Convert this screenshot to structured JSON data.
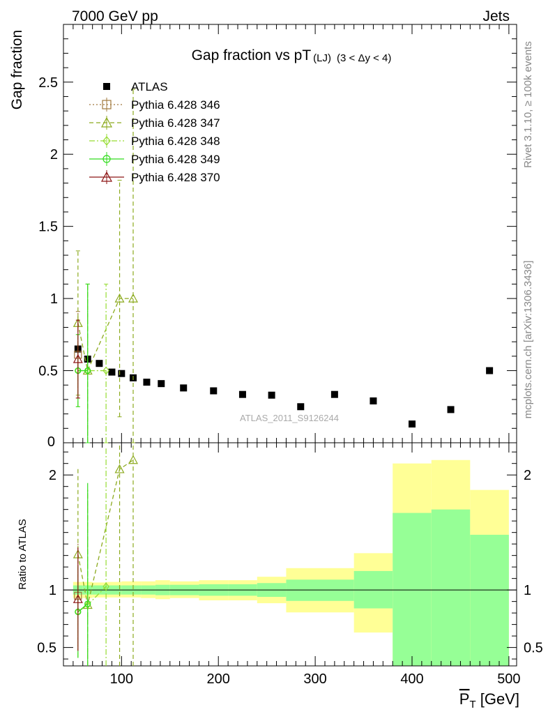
{
  "header": {
    "left": "7000 GeV pp",
    "right": "Jets"
  },
  "title": {
    "main": "Gap fraction vs pT",
    "sub1": "(LJ)",
    "sub2": "(3 < Δy < 4)"
  },
  "side": {
    "rivet": "Rivet 3.1.10, ≥ 100k events",
    "mcplots": "mcplots.cern.ch [arXiv:1306.3436]"
  },
  "watermark": "ATLAS_2011_S9126244",
  "colors": {
    "data": "#000000",
    "p346": "#a0783c",
    "p347": "#8caa1e",
    "p348": "#96dc32",
    "p349": "#32dc1e",
    "p370": "#8c1414",
    "band_total": "#ffff96",
    "band_stat": "#96ff96"
  },
  "chart_data": [
    {
      "type": "scatter",
      "ylabel": "Gap fraction",
      "xlim": [
        40,
        508
      ],
      "ylim": [
        0,
        2.9
      ],
      "yticks": [
        0.5,
        1,
        1.5,
        2,
        2.5
      ],
      "yticklabels": [
        "0.5",
        "1",
        "1.5",
        "2",
        "2.5"
      ],
      "ylabel_zero": "0",
      "legend_position": "top-left",
      "series": [
        {
          "name": "ATLAS",
          "marker": "filled-square",
          "x": [
            55,
            65,
            77,
            90,
            100,
            112,
            126,
            141,
            164,
            195,
            225,
            255,
            285,
            320,
            360,
            400,
            440,
            480
          ],
          "y": [
            0.65,
            0.58,
            0.55,
            0.49,
            0.48,
            0.45,
            0.42,
            0.41,
            0.38,
            0.36,
            0.335,
            0.33,
            0.25,
            0.335,
            0.29,
            0.13,
            0.23,
            0.5
          ]
        },
        {
          "name": "Pythia 6.428 346",
          "marker": "open-square",
          "line": "dotted",
          "x": [
            55
          ],
          "y": [
            0.61
          ],
          "yerr": [
            0.3
          ]
        },
        {
          "name": "Pythia 6.428 347",
          "marker": "open-triangle",
          "line": "dashed",
          "x": [
            55,
            65,
            98,
            112
          ],
          "y": [
            0.83,
            0.5,
            1.0,
            1.0
          ],
          "yerr": [
            0.5,
            0.6,
            0.82,
            1.45
          ]
        },
        {
          "name": "Pythia 6.428 348",
          "marker": "open-diamond",
          "line": "dashdot",
          "x": [
            55,
            65,
            84
          ],
          "y": [
            0.5,
            0.5,
            0.5
          ],
          "yerr": [
            0.25,
            0.6,
            0.6
          ]
        },
        {
          "name": "Pythia 6.428 349",
          "marker": "open-circle",
          "line": "solid",
          "x": [
            55,
            65
          ],
          "y": [
            0.5,
            0.5
          ],
          "yerr": [
            0.25,
            0.6
          ]
        },
        {
          "name": "Pythia 6.428 370",
          "marker": "open-triangle",
          "line": "solid",
          "x": [
            55
          ],
          "y": [
            0.58
          ],
          "yerr": [
            0.27
          ]
        }
      ]
    },
    {
      "type": "area",
      "ylabel": "Ratio to ATLAS",
      "xlabel": "P̄T [GeV]",
      "xlabel_main": "P",
      "xlabel_sub": "T",
      "xlabel_unit": " [GeV]",
      "xlim": [
        40,
        508
      ],
      "ylim": [
        0.34,
        2.28
      ],
      "xticks": [
        100,
        200,
        300,
        400,
        500
      ],
      "xticklabels": [
        "100",
        "200",
        "300",
        "400",
        "500"
      ],
      "yticks": [
        0.5,
        1,
        2
      ],
      "yticklabels": [
        "0.5",
        "1",
        "2"
      ],
      "bins": [
        {
          "lo": 50,
          "hi": 60,
          "stat": [
            0.96,
            1.04
          ],
          "total": [
            0.93,
            1.07
          ]
        },
        {
          "lo": 60,
          "hi": 70,
          "stat": [
            0.96,
            1.04
          ],
          "total": [
            0.93,
            1.07
          ]
        },
        {
          "lo": 70,
          "hi": 85,
          "stat": [
            0.96,
            1.04
          ],
          "total": [
            0.935,
            1.065
          ]
        },
        {
          "lo": 85,
          "hi": 100,
          "stat": [
            0.96,
            1.04
          ],
          "total": [
            0.935,
            1.07
          ]
        },
        {
          "lo": 100,
          "hi": 120,
          "stat": [
            0.96,
            1.04
          ],
          "total": [
            0.935,
            1.075
          ]
        },
        {
          "lo": 120,
          "hi": 135,
          "stat": [
            0.96,
            1.04
          ],
          "total": [
            0.93,
            1.075
          ]
        },
        {
          "lo": 135,
          "hi": 150,
          "stat": [
            0.955,
            1.045
          ],
          "total": [
            0.92,
            1.085
          ]
        },
        {
          "lo": 150,
          "hi": 180,
          "stat": [
            0.955,
            1.045
          ],
          "total": [
            0.93,
            1.075
          ]
        },
        {
          "lo": 180,
          "hi": 210,
          "stat": [
            0.95,
            1.05
          ],
          "total": [
            0.91,
            1.085
          ]
        },
        {
          "lo": 210,
          "hi": 240,
          "stat": [
            0.95,
            1.05
          ],
          "total": [
            0.91,
            1.085
          ]
        },
        {
          "lo": 240,
          "hi": 270,
          "stat": [
            0.94,
            1.06
          ],
          "total": [
            0.885,
            1.115
          ]
        },
        {
          "lo": 270,
          "hi": 340,
          "stat": [
            0.905,
            1.09
          ],
          "total": [
            0.805,
            1.19
          ]
        },
        {
          "lo": 340,
          "hi": 380,
          "stat": [
            0.84,
            1.165
          ],
          "total": [
            0.63,
            1.32
          ]
        },
        {
          "lo": 380,
          "hi": 420,
          "stat": [
            0.34,
            1.67
          ],
          "total": [
            0.34,
            2.1
          ]
        },
        {
          "lo": 420,
          "hi": 460,
          "stat": [
            0.34,
            1.7
          ],
          "total": [
            0.34,
            2.13
          ]
        },
        {
          "lo": 460,
          "hi": 500,
          "stat": [
            0.34,
            1.48
          ],
          "total": [
            0.34,
            1.87
          ]
        }
      ],
      "series": [
        {
          "name": "Pythia 6.428 346",
          "x": [
            55
          ],
          "y": [
            0.95
          ],
          "yerr": [
            0.47
          ]
        },
        {
          "name": "Pythia 6.428 347",
          "x": [
            55,
            65,
            98,
            112
          ],
          "y": [
            1.31,
            0.87,
            2.05,
            2.13
          ],
          "yerr": [
            0.75,
            1.0,
            2.0,
            2.0
          ]
        },
        {
          "name": "Pythia 6.428 348",
          "x": [
            55,
            65,
            84
          ],
          "y": [
            0.81,
            0.87,
            1.03
          ],
          "yerr": [
            0.4,
            1.0,
            1.2
          ]
        },
        {
          "name": "Pythia 6.428 349",
          "x": [
            55,
            65
          ],
          "y": [
            0.81,
            0.88
          ],
          "yerr": [
            0.4,
            1.05
          ]
        },
        {
          "name": "Pythia 6.428 370",
          "x": [
            55
          ],
          "y": [
            0.92
          ],
          "yerr": [
            0.45
          ]
        }
      ]
    }
  ]
}
